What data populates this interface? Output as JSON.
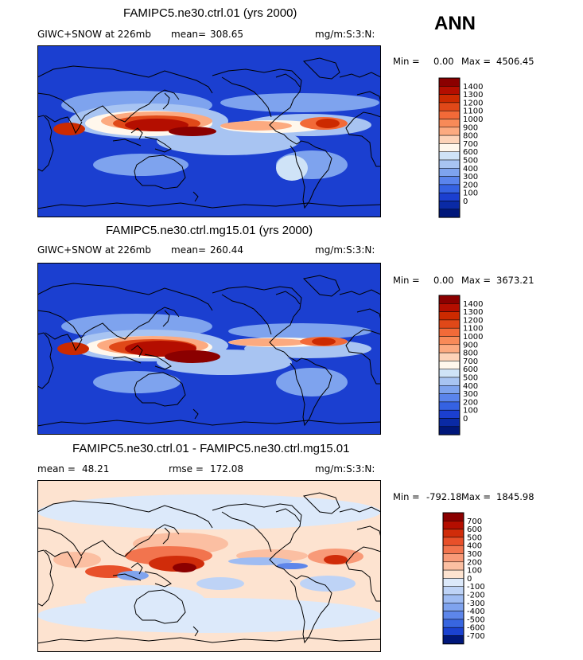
{
  "season": "ANN",
  "colors": {
    "ocean_blue": "#1b3fd0",
    "land_line": "#000000"
  },
  "chart_data": [
    {
      "type": "heatmap",
      "title": "FAMIPC5.ne30.ctrl.01 (yrs 2000)",
      "left_label": "GIWC+SNOW at 226mb",
      "mean_label": "mean=",
      "mean_value": "308.65",
      "units": "mg/m:S:3:N:",
      "min_label": "Min =",
      "min": "0.00",
      "max_label": "Max =",
      "max": "4506.45",
      "levels": [
        "1400",
        "1300",
        "1200",
        "1100",
        "1000",
        "900",
        "800",
        "700",
        "600",
        "500",
        "400",
        "300",
        "200",
        "100",
        "0"
      ],
      "colors": [
        "#8b0000",
        "#b40e00",
        "#cc2a00",
        "#e04818",
        "#f26a38",
        "#f88a58",
        "#fcaa80",
        "#fdd3b8",
        "#fff7ec",
        "#cfe3f7",
        "#a8c4f2",
        "#7ea3ee",
        "#5a84ec",
        "#3562e2",
        "#1b3fd0",
        "#0a2aa5",
        "#00177a"
      ]
    },
    {
      "type": "heatmap",
      "title": "FAMIPC5.ne30.ctrl.mg15.01 (yrs 2000)",
      "left_label": "GIWC+SNOW at 226mb",
      "mean_label": "mean=",
      "mean_value": "260.44",
      "units": "mg/m:S:3:N:",
      "min_label": "Min =",
      "min": "0.00",
      "max_label": "Max =",
      "max": "3673.21",
      "levels": [
        "1400",
        "1300",
        "1200",
        "1100",
        "1000",
        "900",
        "800",
        "700",
        "600",
        "500",
        "400",
        "300",
        "200",
        "100",
        "0"
      ],
      "colors": [
        "#8b0000",
        "#b40e00",
        "#cc2a00",
        "#e04818",
        "#f26a38",
        "#f88a58",
        "#fcaa80",
        "#fdd3b8",
        "#fff7ec",
        "#cfe3f7",
        "#a8c4f2",
        "#7ea3ee",
        "#5a84ec",
        "#3562e2",
        "#1b3fd0",
        "#0a2aa5",
        "#00177a"
      ]
    },
    {
      "type": "heatmap",
      "title": "FAMIPC5.ne30.ctrl.01 - FAMIPC5.ne30.ctrl.mg15.01",
      "left_label": "mean =",
      "mean_label": "",
      "mean_value": "48.21",
      "rmse_label": "rmse =",
      "rmse_value": "172.08",
      "units": "mg/m:S:3:N:",
      "min_label": "Min =",
      "min": "-792.18",
      "max_label": "Max =",
      "max": "1845.98",
      "levels": [
        "700",
        "600",
        "500",
        "400",
        "300",
        "200",
        "100",
        "0",
        "-100",
        "-200",
        "-300",
        "-400",
        "-500",
        "-600",
        "-700"
      ],
      "colors": [
        "#8b0000",
        "#b40e00",
        "#d02c0a",
        "#e8502a",
        "#f2744e",
        "#f89a78",
        "#fbbfa2",
        "#fde3d0",
        "#dce9fa",
        "#bed3f6",
        "#9fbcf2",
        "#7fa3ee",
        "#5d86ea",
        "#3866e0",
        "#1b42d0",
        "#00177a"
      ]
    }
  ]
}
